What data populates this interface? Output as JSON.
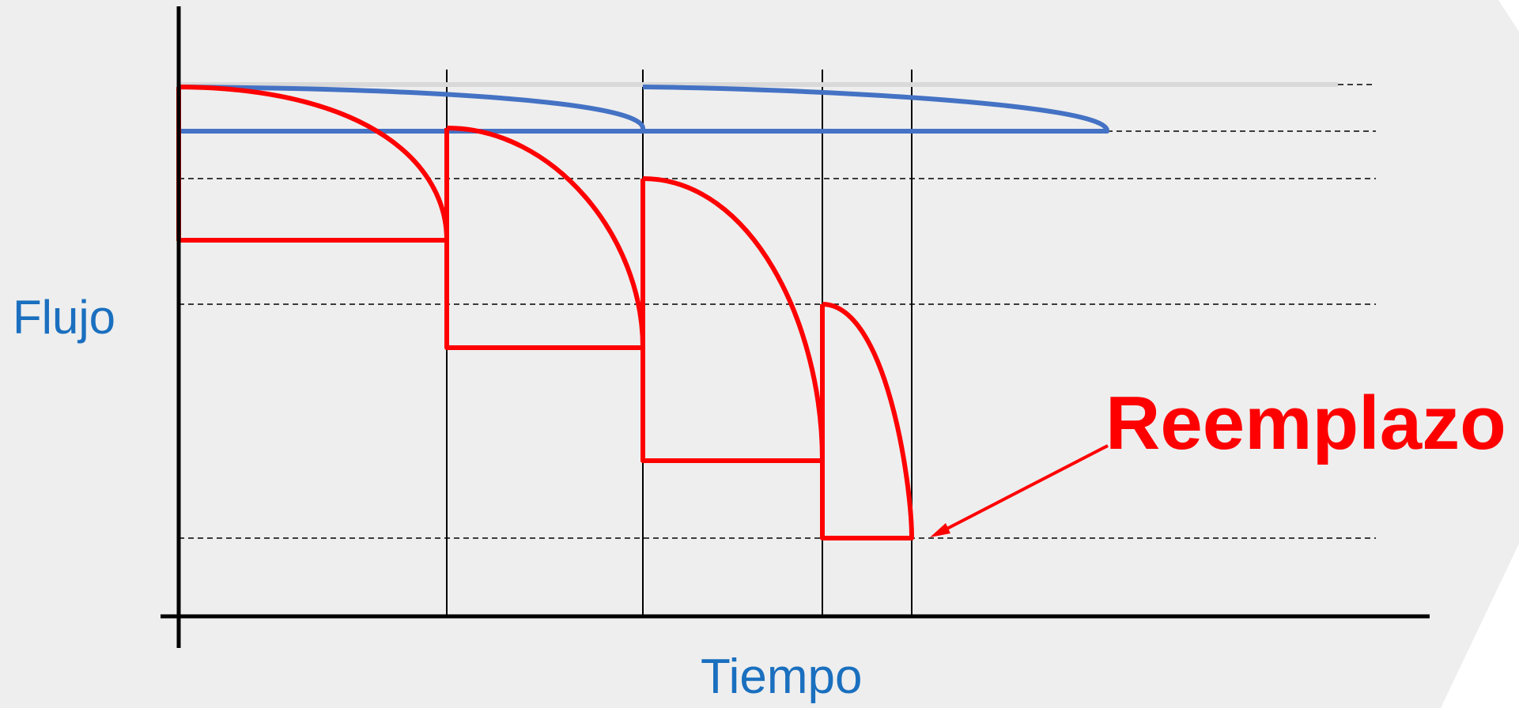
{
  "diagram": {
    "y_axis_label": "Flujo",
    "x_axis_label": "Tiempo",
    "annotation": "Reemplazo"
  },
  "colors": {
    "background": "#eeeeee",
    "axis": "#000000",
    "label_blue": "#1a6fbf",
    "red": "#ff0000",
    "blue_curve": "#4472c4",
    "light_curve": "#d9d9d9",
    "dashed": "#000000"
  }
}
